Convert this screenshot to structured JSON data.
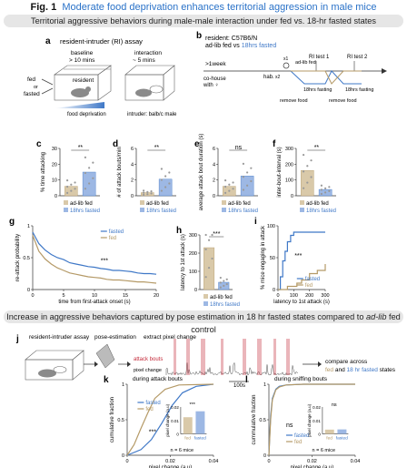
{
  "figure": {
    "label": "Fig. 1",
    "title": "Moderate food deprivation enhances territorial aggression in male mice",
    "title_color": "#2a72c8"
  },
  "sections": {
    "top": "Territorial aggressive behaviors during male-male interaction under fed vs. 18-hr fasted states",
    "bottom_prefix": "Increase in aggressive behaviors captured by pose estimation in 18 hr fasted states compared to ",
    "bottom_italic": "ad-lib",
    "bottom_suffix": " fed control"
  },
  "colors": {
    "fasted": "#3f78c7",
    "fed": "#b59a67",
    "fasted_fill": "#9db8e4",
    "fed_fill": "#d9c9a9",
    "attack": "#c42a3a"
  },
  "panel_a": {
    "letter": "a",
    "title": "resident-intruder (RI) assay",
    "baseline": "baseline",
    "baseline_time": "> 10 mins",
    "interaction": "interaction",
    "interaction_time": "~ 5 mins",
    "fed": "fed",
    "or": "or",
    "fasted": "fasted",
    "resident": "resident",
    "food_deprivation": "food deprivation",
    "intruder": "intruder: balb/c male"
  },
  "panel_b": {
    "letter": "b",
    "line1": "resident: C57B6/N",
    "line2_a": "ad-lib fed vs ",
    "line2_b": "18hrs fasted",
    "week": ">1week",
    "cohouse": "co-house",
    "cohouse_sym": "with ♀",
    "hab": "hab.",
    "hab_x": "x2",
    "ri1": "RI test 1",
    "ri2": "RI test 2",
    "adlib": "ad-lib fed",
    "fasting1": "18hrs\nfasting",
    "fasting2": "18hrs\nfasting",
    "remove_food": "remove\nfood",
    "remove_food2": "remove\nfood",
    "x1": "x1"
  },
  "chart_data": [
    {
      "panel": "c",
      "type": "bar",
      "categories": [
        "ad-lib fed",
        "18hrs fasted"
      ],
      "values": [
        6,
        15
      ],
      "ylabel": "% time attacking",
      "yticks": [
        "0",
        "10",
        "20",
        "30"
      ],
      "ylim": [
        0,
        30
      ],
      "sig": "**",
      "points_fed": [
        1,
        2,
        3,
        4,
        5,
        7,
        8,
        10,
        12
      ],
      "points_fasted": [
        6,
        9,
        12,
        14,
        16,
        19,
        21,
        24,
        27
      ]
    },
    {
      "panel": "d",
      "type": "bar",
      "categories": [
        "ad-lib fed",
        "18hrs fasted"
      ],
      "values": [
        0.4,
        2.1
      ],
      "ylabel": "# of attack bouts/min",
      "yticks": [
        "0",
        "2",
        "4",
        "6"
      ],
      "ylim": [
        0,
        6
      ],
      "sig": "**"
    },
    {
      "panel": "e",
      "type": "bar",
      "categories": [
        "ad-lib fed",
        "18hrs fasted"
      ],
      "values": [
        1.2,
        2.5
      ],
      "ylabel": "average attack bout duration (s)",
      "yticks": [
        "0",
        "2",
        "4",
        "6"
      ],
      "ylim": [
        0,
        6
      ],
      "sig": "ns"
    },
    {
      "panel": "f",
      "type": "bar",
      "categories": [
        "ad-lib fed",
        "18hrs fasted"
      ],
      "values": [
        160,
        40
      ],
      "ylabel": "inter-bout-interval (s)",
      "yticks": [
        "0",
        "100",
        "200",
        "300"
      ],
      "ylim": [
        0,
        300
      ],
      "sig": "**"
    },
    {
      "panel": "g",
      "type": "line",
      "xlabel": "time from first-attack onset (s)",
      "ylabel": "re-attack probability",
      "xticks": [
        "0",
        "5",
        "10",
        "15",
        "20"
      ],
      "xlim": [
        0,
        20
      ],
      "yticks": [
        "0",
        "0.5",
        "1"
      ],
      "ylim": [
        0,
        1
      ],
      "sig": "***",
      "series": [
        {
          "name": "fasted",
          "x": [
            0,
            1,
            2,
            3,
            4,
            5,
            6,
            7,
            8,
            9,
            10,
            11,
            12,
            13,
            14,
            15,
            16,
            17,
            18,
            19,
            20
          ],
          "values": [
            0.9,
            0.72,
            0.62,
            0.55,
            0.5,
            0.47,
            0.42,
            0.4,
            0.38,
            0.36,
            0.35,
            0.33,
            0.32,
            0.3,
            0.3,
            0.29,
            0.28,
            0.26,
            0.25,
            0.25,
            0.24
          ]
        },
        {
          "name": "fed",
          "x": [
            0,
            1,
            2,
            3,
            4,
            5,
            6,
            7,
            8,
            9,
            10,
            11,
            12,
            13,
            14,
            15,
            16,
            17,
            18,
            19,
            20
          ],
          "values": [
            0.85,
            0.6,
            0.48,
            0.4,
            0.34,
            0.3,
            0.26,
            0.24,
            0.22,
            0.2,
            0.19,
            0.18,
            0.16,
            0.15,
            0.15,
            0.14,
            0.13,
            0.12,
            0.12,
            0.11,
            0.1
          ]
        }
      ]
    },
    {
      "panel": "h",
      "type": "bar",
      "categories": [
        "ad-lib fed",
        "18hrs fasted"
      ],
      "values": [
        230,
        40
      ],
      "ylabel": "latency to 1st attack (s)",
      "yticks": [
        "0",
        "100",
        "200",
        "300"
      ],
      "ylim": [
        0,
        300
      ],
      "sig": "***"
    },
    {
      "panel": "i",
      "type": "line",
      "xlabel": "latency to 1st attack (s)",
      "ylabel": "% mice engaging in attack",
      "xticks": [
        "0",
        "100",
        "200",
        "300"
      ],
      "xlim": [
        0,
        300
      ],
      "yticks": [
        "0",
        "50",
        "100"
      ],
      "ylim": [
        0,
        100
      ],
      "sig": "***",
      "series": [
        {
          "name": "fasted",
          "x": [
            0,
            15,
            30,
            45,
            60,
            80,
            100,
            300
          ],
          "values": [
            0,
            20,
            45,
            60,
            75,
            85,
            90,
            90
          ]
        },
        {
          "name": "fed",
          "x": [
            0,
            60,
            120,
            150,
            200,
            250,
            300
          ],
          "values": [
            0,
            5,
            10,
            15,
            25,
            30,
            40
          ]
        }
      ]
    },
    {
      "panel": "k",
      "type": "line",
      "title": "during attack bouts",
      "xlabel": "pixel change (a.u)",
      "ylabel": "cumulative fraction",
      "xticks": [
        "0",
        "0.02",
        "0.04"
      ],
      "xlim": [
        0,
        0.05
      ],
      "yticks": [
        "0",
        "0.5",
        "1"
      ],
      "ylim": [
        0,
        1
      ],
      "sig": "***",
      "n": "n = 6 mice",
      "series": [
        {
          "name": "fasted",
          "x": [
            0,
            0.008,
            0.014,
            0.02,
            0.026,
            0.032,
            0.04,
            0.05
          ],
          "values": [
            0,
            0.08,
            0.22,
            0.45,
            0.7,
            0.88,
            0.97,
            1
          ]
        },
        {
          "name": "fed",
          "x": [
            0,
            0.004,
            0.008,
            0.012,
            0.016,
            0.022,
            0.03,
            0.05
          ],
          "values": [
            0,
            0.15,
            0.38,
            0.6,
            0.8,
            0.93,
            0.99,
            1
          ]
        }
      ],
      "inset": {
        "categories": [
          "fed",
          "fasted"
        ],
        "values": [
          0.0155,
          0.021
        ],
        "ylabel": "pixel change (a.u)",
        "yticks": [
          "0",
          "0.01",
          "0.02"
        ],
        "ylim": [
          0,
          0.025
        ],
        "sig": "***"
      }
    },
    {
      "panel": "l",
      "type": "line",
      "title": "during sniffing bouts",
      "xlabel": "pixel change (a.u)",
      "ylabel": "cummulative fraction",
      "xticks": [
        "0",
        "0.02",
        "0.04"
      ],
      "xlim": [
        0,
        0.05
      ],
      "yticks": [
        "0",
        "0.5",
        "1"
      ],
      "ylim": [
        0,
        1
      ],
      "sig": "ns",
      "n": "n = 6 mice",
      "series": [
        {
          "name": "fasted",
          "x": [
            0,
            0.001,
            0.002,
            0.004,
            0.006,
            0.01,
            0.02,
            0.05
          ],
          "values": [
            0,
            0.55,
            0.8,
            0.93,
            0.97,
            0.99,
            1,
            1
          ]
        },
        {
          "name": "fed",
          "x": [
            0,
            0.001,
            0.002,
            0.004,
            0.006,
            0.01,
            0.02,
            0.05
          ],
          "values": [
            0,
            0.5,
            0.78,
            0.92,
            0.96,
            0.99,
            1,
            1
          ]
        }
      ],
      "inset": {
        "categories": [
          "fed",
          "fasted"
        ],
        "values": [
          0.004,
          0.0042
        ],
        "ylabel": "pixel change (a.u)",
        "yticks": [
          "0",
          "0.01",
          "0.02"
        ],
        "ylim": [
          0,
          0.025
        ],
        "sig": "ns"
      }
    }
  ],
  "panel_j": {
    "letter": "j",
    "assay": "resident-intruder\nassay",
    "pose": "pose-estimation",
    "extract": "extract pixel change",
    "attack_bouts": "attack bouts",
    "pixel_change": "pixel change",
    "scale": "100s",
    "compare1": "compare across ",
    "compare_fed": "fed",
    "compare2": "and ",
    "compare_fasted": "18 hr fasted",
    "compare3": " states"
  },
  "legend": {
    "fed": "fed",
    "fasted": "fasted",
    "adlib": "ad-lib fed",
    "hrs18": "18hrs fasted"
  }
}
